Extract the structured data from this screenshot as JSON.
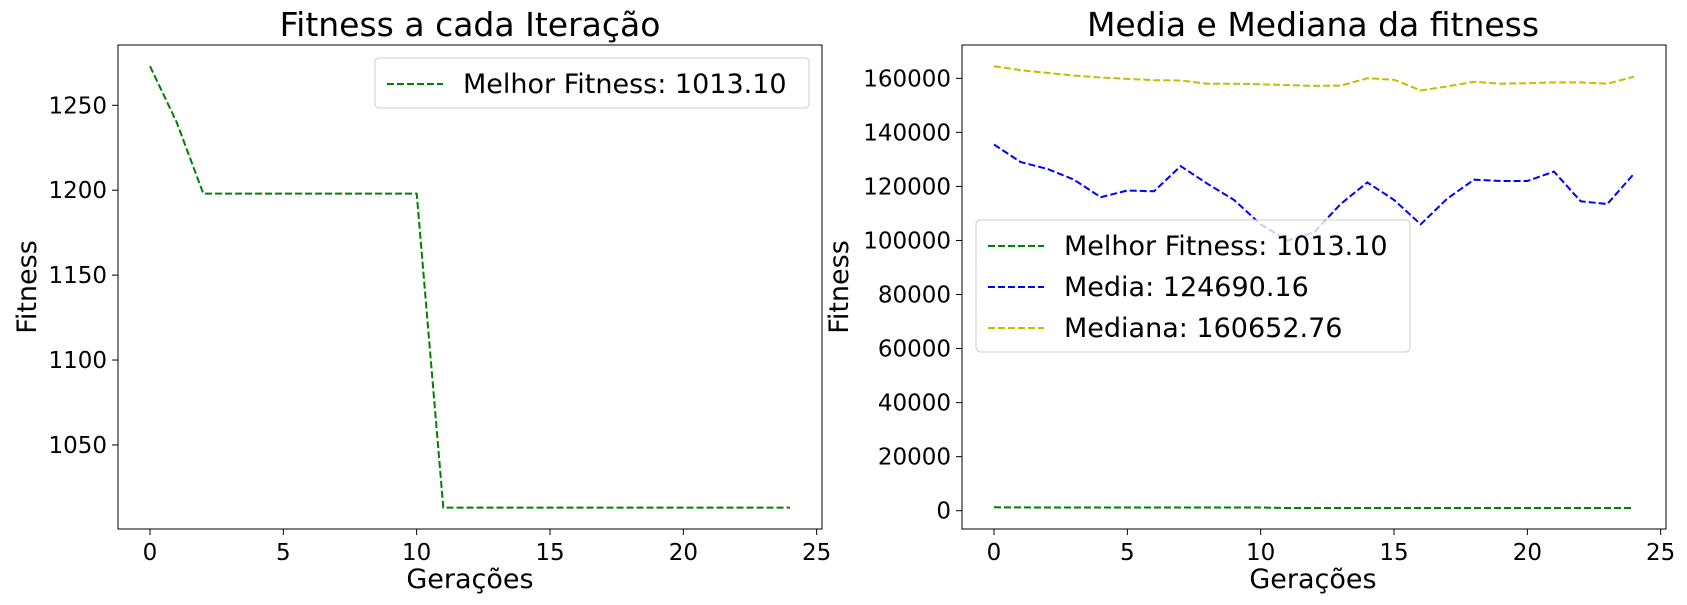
{
  "chart_data": [
    {
      "type": "line",
      "title": "Fitness a cada Iteração",
      "xlabel": "Gerações",
      "ylabel": "Fitness",
      "xlim": [
        -1.2,
        25.2
      ],
      "ylim": [
        1000.5,
        1285.5
      ],
      "xticks": [
        0,
        5,
        10,
        15,
        20,
        25
      ],
      "yticks": [
        1050,
        1100,
        1150,
        1200,
        1250
      ],
      "grid": false,
      "legend_position": "upper right",
      "x": [
        0,
        1,
        2,
        3,
        4,
        5,
        6,
        7,
        8,
        9,
        10,
        11,
        12,
        13,
        14,
        15,
        16,
        17,
        18,
        19,
        20,
        21,
        22,
        23,
        24
      ],
      "series": [
        {
          "name": "Melhor Fitness: 1013.10",
          "color": "#008000",
          "linestyle": "dashed",
          "values": [
            1273,
            1240,
            1198,
            1198,
            1198,
            1198,
            1198,
            1198,
            1198,
            1198,
            1198,
            1013.1,
            1013.1,
            1013.1,
            1013.1,
            1013.1,
            1013.1,
            1013.1,
            1013.1,
            1013.1,
            1013.1,
            1013.1,
            1013.1,
            1013.1,
            1013.1
          ]
        }
      ]
    },
    {
      "type": "line",
      "title": "Media e Mediana da fitness",
      "xlabel": "Gerações",
      "ylabel": "Fitness",
      "xlim": [
        -1.2,
        25.2
      ],
      "ylim": [
        -6770,
        172330
      ],
      "xticks": [
        0,
        5,
        10,
        15,
        20,
        25
      ],
      "yticks": [
        0,
        20000,
        40000,
        60000,
        80000,
        100000,
        120000,
        140000,
        160000
      ],
      "grid": false,
      "legend_position": "center left",
      "x": [
        0,
        1,
        2,
        3,
        4,
        5,
        6,
        7,
        8,
        9,
        10,
        11,
        12,
        13,
        14,
        15,
        16,
        17,
        18,
        19,
        20,
        21,
        22,
        23,
        24
      ],
      "series": [
        {
          "name": "Melhor Fitness: 1013.10",
          "color": "#008000",
          "linestyle": "dashed",
          "values": [
            1273,
            1240,
            1198,
            1198,
            1198,
            1198,
            1198,
            1198,
            1198,
            1198,
            1198,
            1013.1,
            1013.1,
            1013.1,
            1013.1,
            1013.1,
            1013.1,
            1013.1,
            1013.1,
            1013.1,
            1013.1,
            1013.1,
            1013.1,
            1013.1,
            1013.1
          ]
        },
        {
          "name": "Media: 124690.16",
          "color": "#0000ff",
          "linestyle": "dashed",
          "values": [
            135500,
            129000,
            126500,
            122500,
            116000,
            118500,
            118200,
            127500,
            121000,
            115000,
            106000,
            100000,
            103000,
            113500,
            121500,
            115000,
            106000,
            115500,
            122500,
            122000,
            122000,
            125500,
            114500,
            113500,
            124700
          ]
        },
        {
          "name": "Mediana: 160652.76",
          "color": "#bfbf00",
          "linestyle": "dashed",
          "values": [
            164500,
            163000,
            162000,
            161000,
            160300,
            159800,
            159300,
            159200,
            158000,
            158000,
            157800,
            157500,
            157200,
            157300,
            160000,
            159500,
            155500,
            157000,
            158700,
            158000,
            158200,
            158500,
            158500,
            158000,
            160650
          ]
        }
      ]
    }
  ]
}
